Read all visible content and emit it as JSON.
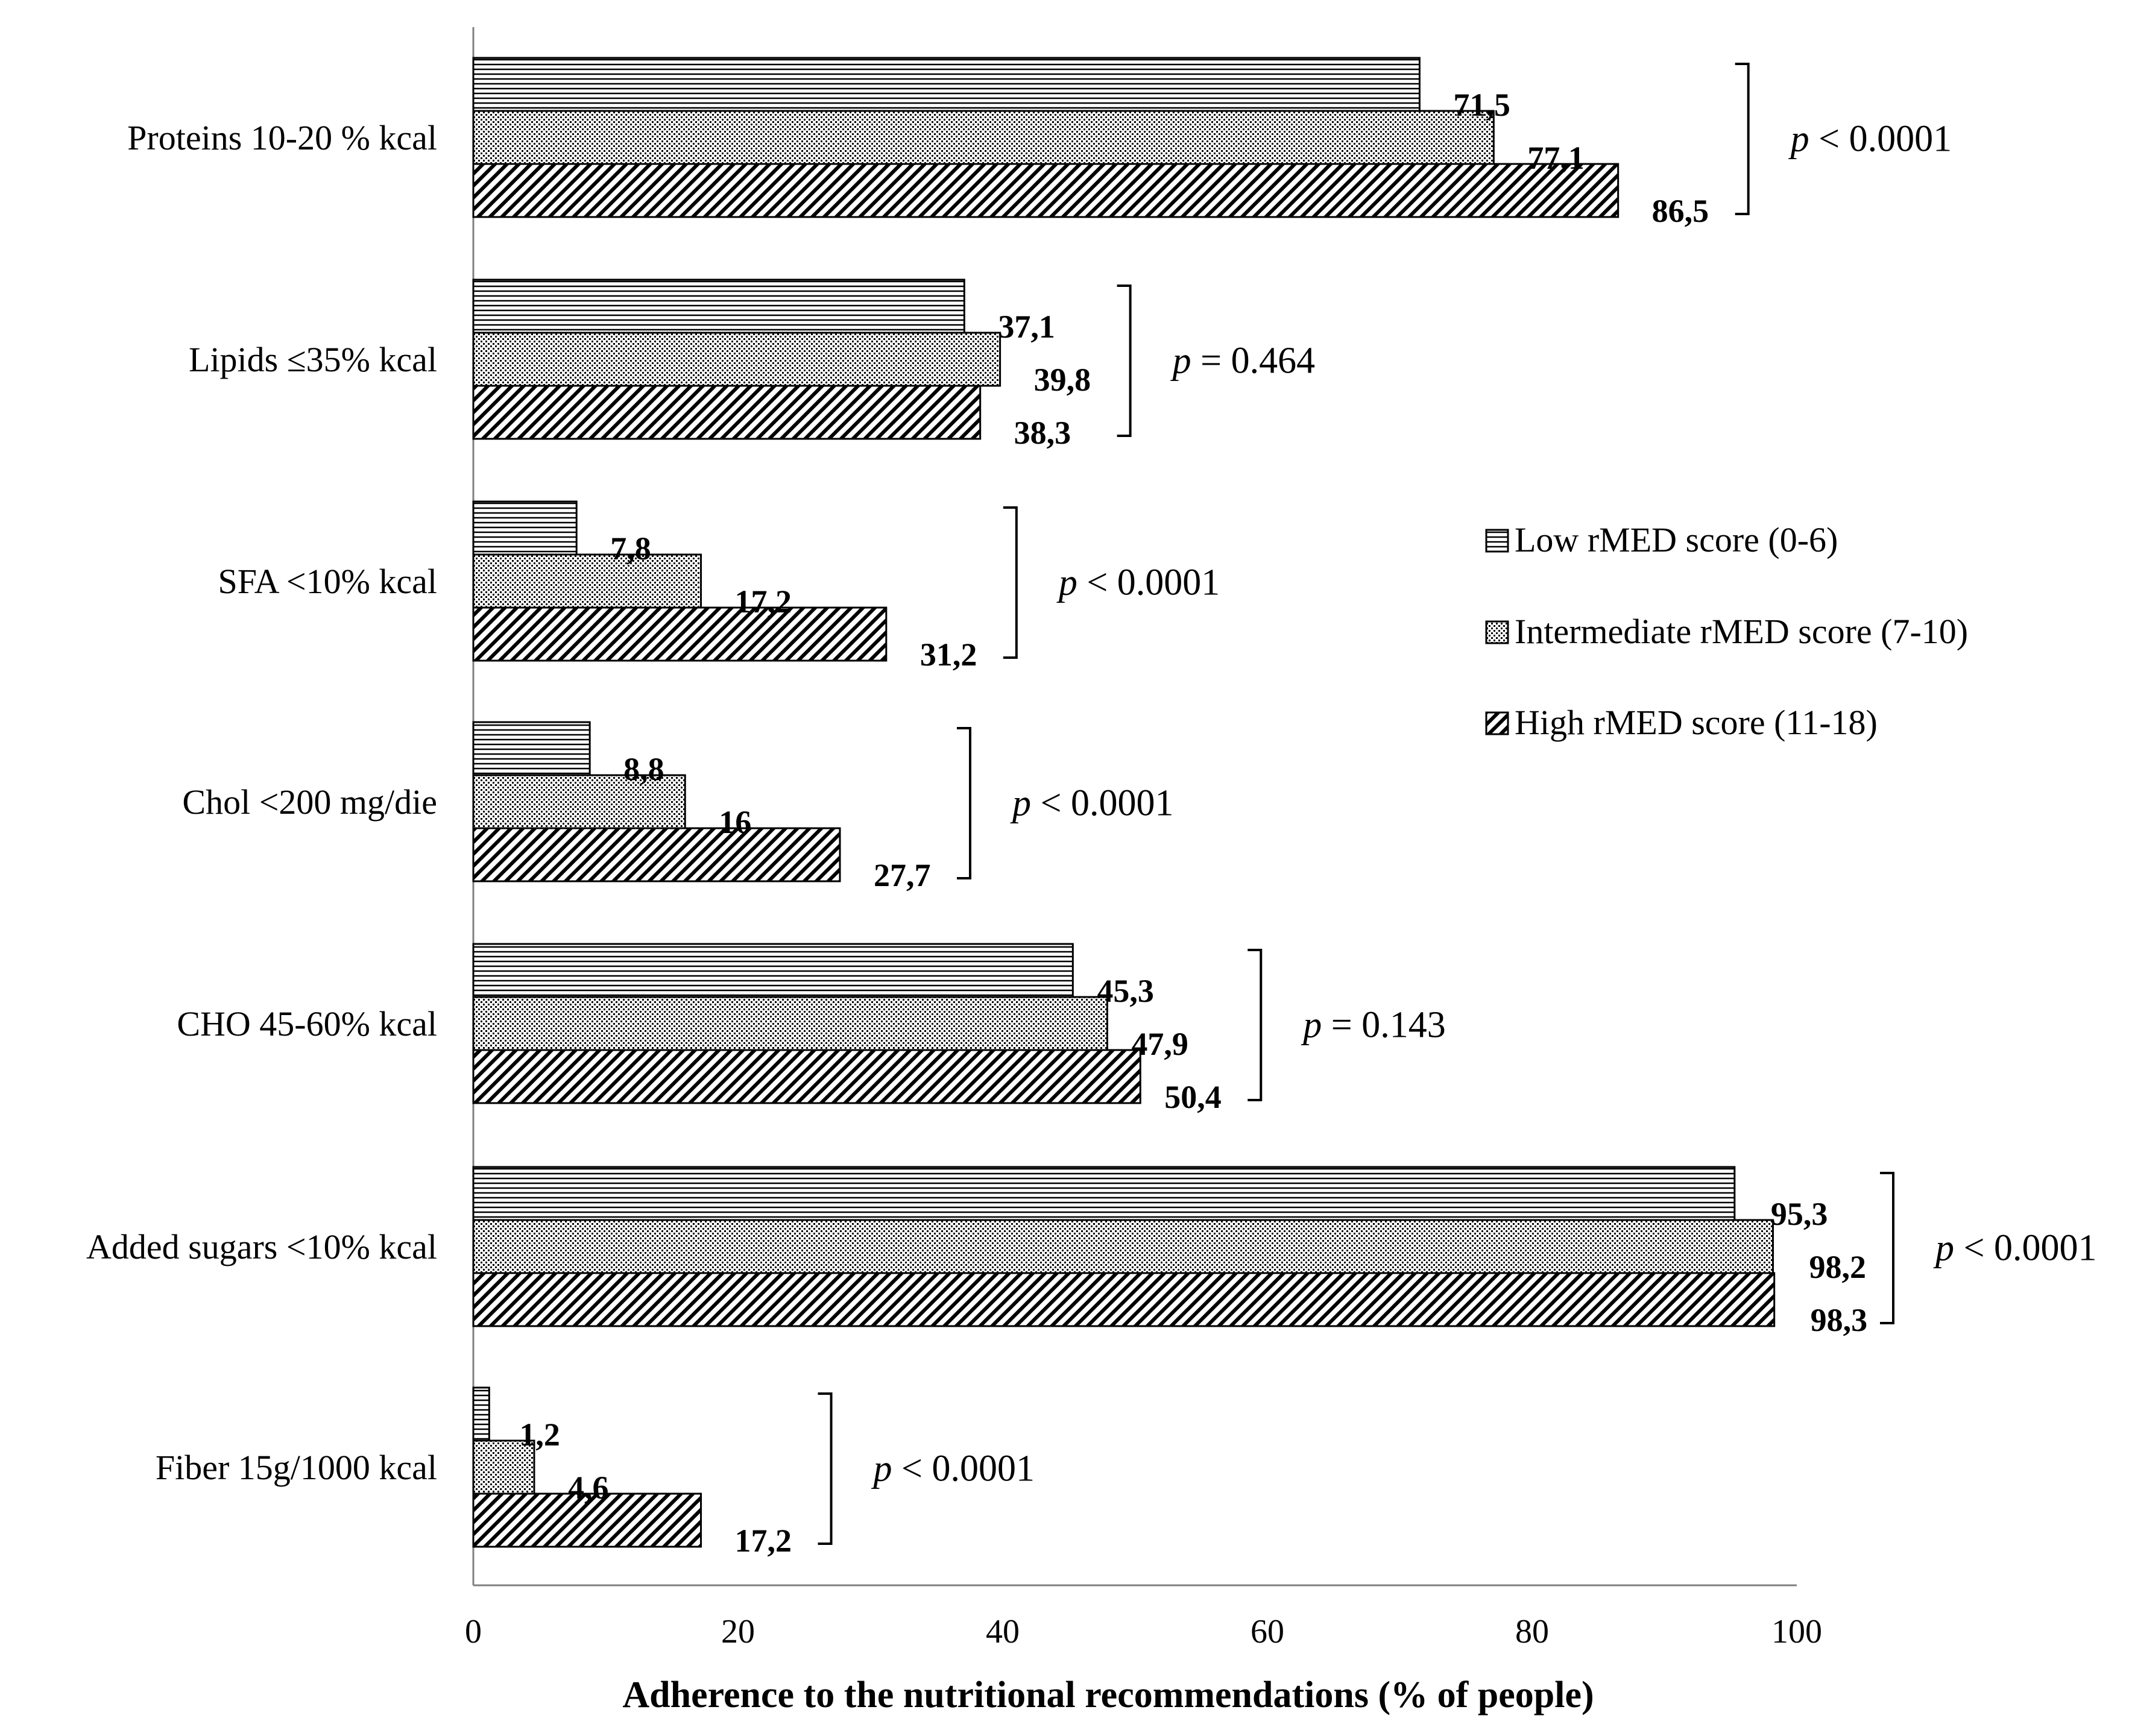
{
  "chart_data": {
    "type": "bar",
    "orientation": "horizontal",
    "title": "",
    "xlabel": "Adherence to the nutritional recommendations (% of people)",
    "ylabel": "",
    "xlim": [
      0,
      100
    ],
    "xticks": [
      0,
      20,
      40,
      60,
      80,
      100
    ],
    "grid": false,
    "legend_position": "right",
    "categories": [
      "Proteins 10-20 % kcal",
      "Lipids ≤35% kcal",
      "SFA <10% kcal",
      "Chol <200 mg/die",
      "CHO 45-60% kcal",
      "Added sugars <10% kcal",
      "Fiber 15g/1000 kcal"
    ],
    "series": [
      {
        "name": "Low rMED score (0-6)",
        "pattern": "horizontal-lines",
        "values": [
          71.5,
          37.1,
          7.8,
          8.8,
          45.3,
          95.3,
          1.2
        ],
        "labels": [
          "71,5",
          "37,1",
          "7,8",
          "8,8",
          "45,3",
          "95,3",
          "1,2"
        ]
      },
      {
        "name": "Intermediate rMED score (7-10)",
        "pattern": "dots",
        "values": [
          77.1,
          39.8,
          17.2,
          16,
          47.9,
          98.2,
          4.6
        ],
        "labels": [
          "77,1",
          "39,8",
          "17,2",
          "16",
          "47,9",
          "98,2",
          "4,6"
        ]
      },
      {
        "name": "High rMED score (11-18)",
        "pattern": "diagonal-lines",
        "values": [
          86.5,
          38.3,
          31.2,
          27.7,
          50.4,
          98.3,
          17.2
        ],
        "labels": [
          "86,5",
          "38,3",
          "31,2",
          "27,7",
          "50,4",
          "98,3",
          "17,2"
        ]
      }
    ],
    "annotations": [
      {
        "category": "Proteins 10-20 % kcal",
        "p_symbol": "p",
        "p_value": "< 0.0001"
      },
      {
        "category": "Lipids ≤35% kcal",
        "p_symbol": "p",
        "p_value": "= 0.464"
      },
      {
        "category": "SFA <10% kcal",
        "p_symbol": "p",
        "p_value": "< 0.0001"
      },
      {
        "category": "Chol <200 mg/die",
        "p_symbol": "p",
        "p_value": "< 0.0001"
      },
      {
        "category": "CHO 45-60% kcal",
        "p_symbol": "p",
        "p_value": "= 0.143"
      },
      {
        "category": "Added sugars <10% kcal",
        "p_symbol": "p",
        "p_value": "< 0.0001"
      },
      {
        "category": "Fiber 15g/1000 kcal",
        "p_symbol": "p",
        "p_value": "< 0.0001"
      }
    ]
  }
}
